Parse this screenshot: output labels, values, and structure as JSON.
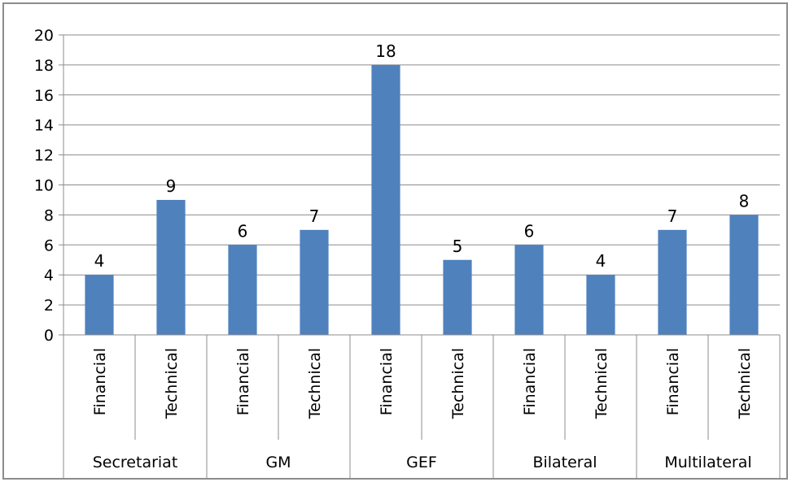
{
  "chart_data": {
    "type": "bar",
    "title": "",
    "xlabel": "",
    "ylabel": "",
    "ylim": [
      0,
      20
    ],
    "y_ticks": [
      0,
      2,
      4,
      6,
      8,
      10,
      12,
      14,
      16,
      18,
      20
    ],
    "grid": true,
    "legend": "none",
    "bar_color": "#4f81bd",
    "groups": [
      {
        "name": "Secretariat",
        "categories": [
          "Financial",
          "Technical"
        ],
        "values": [
          4,
          9
        ]
      },
      {
        "name": "GM",
        "categories": [
          "Financial",
          "Technical"
        ],
        "values": [
          6,
          7
        ]
      },
      {
        "name": "GEF",
        "categories": [
          "Financial",
          "Technical"
        ],
        "values": [
          18,
          5
        ]
      },
      {
        "name": "Bilateral",
        "categories": [
          "Financial",
          "Technical"
        ],
        "values": [
          6,
          4
        ]
      },
      {
        "name": "Multilateral",
        "categories": [
          "Financial",
          "Technical"
        ],
        "values": [
          7,
          8
        ]
      }
    ]
  }
}
